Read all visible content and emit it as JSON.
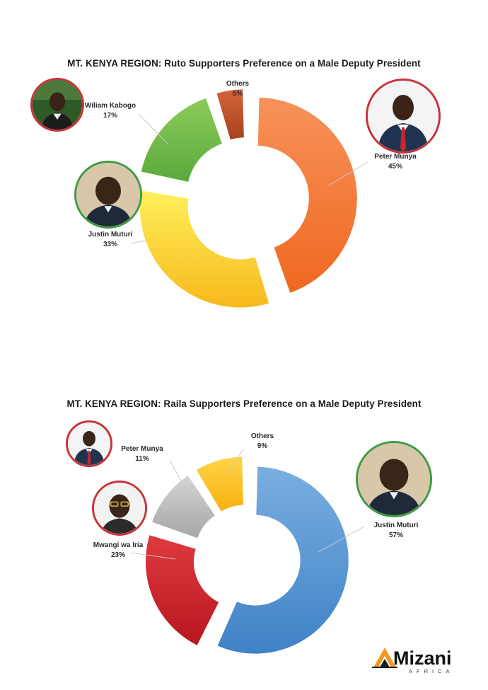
{
  "chart_data": [
    {
      "type": "donut",
      "title": "MT. KENYA REGION: Ruto Supporters Preference on a Male Deputy President",
      "slices": [
        {
          "name": "Peter Munya",
          "value": 45,
          "label": "45%",
          "color_start": "#f7925a",
          "color_end": "#ef6820"
        },
        {
          "name": "Justin Muturi",
          "value": 33,
          "label": "33%",
          "color_start": "#fff05c",
          "color_end": "#f6b91b"
        },
        {
          "name": "Wiliam Kabogo",
          "value": 17,
          "label": "17%",
          "color_start": "#8dcb5a",
          "color_end": "#5aa93d"
        },
        {
          "name": "Others",
          "value": 5,
          "label": "5%",
          "color_start": "#d2643a",
          "color_end": "#a8421e"
        }
      ]
    },
    {
      "type": "donut",
      "title": "MT. KENYA REGION: Raila Supporters Preference on a Male Deputy President",
      "slices": [
        {
          "name": "Justin Muturi",
          "value": 57,
          "label": "57%",
          "color_start": "#7aaee0",
          "color_end": "#3f82c6"
        },
        {
          "name": "Mwangi wa Iria",
          "value": 23,
          "label": "23%",
          "color_start": "#df3a40",
          "color_end": "#b8161f"
        },
        {
          "name": "Peter Munya",
          "value": 11,
          "label": "11%",
          "color_start": "#d4d4d4",
          "color_end": "#a6a6a6"
        },
        {
          "name": "Others",
          "value": 9,
          "label": "9%",
          "color_start": "#ffd54a",
          "color_end": "#f5b10f"
        }
      ]
    }
  ],
  "brand": {
    "name": "Mizani",
    "sub": "AFRICA"
  },
  "colors": {
    "ring_red": "#c8333b",
    "ring_green": "#3f9a46"
  }
}
